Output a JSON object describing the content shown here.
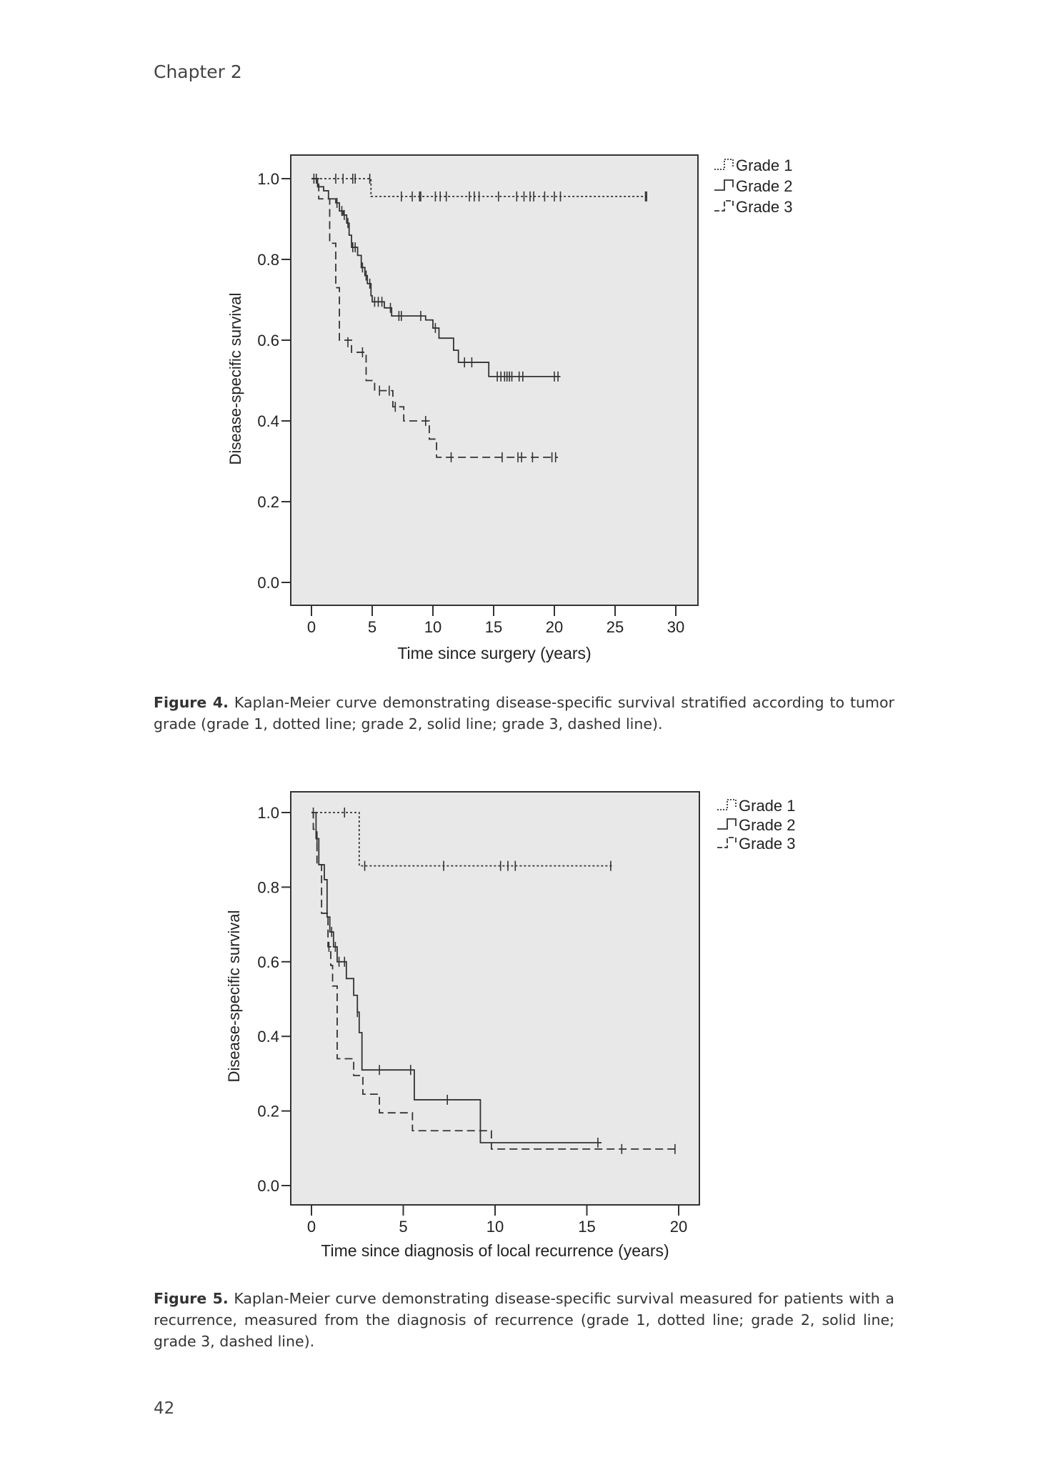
{
  "header": {
    "running_head": "Chapter 2"
  },
  "page_number": "42",
  "figure4": {
    "label": "Figure 4.",
    "caption": "Kaplan-Meier curve demonstrating disease-specific survival stratified according to tumor grade (grade 1, dotted line; grade 2, solid line; grade 3, dashed line)."
  },
  "figure5": {
    "label": "Figure 5.",
    "caption": "Kaplan-Meier curve demonstrating disease-specific survival measured for patients with a recurrence, measured from the diagnosis of recurrence (grade 1, dotted line; grade 2, solid line; grade 3, dashed line)."
  },
  "chart_data": [
    {
      "type": "line",
      "subtype": "kaplan-meier",
      "xlabel": "Time since surgery (years)",
      "ylabel": "Disease-specific survival",
      "xlim": [
        0,
        30
      ],
      "ylim": [
        0,
        1
      ],
      "xticks": [
        "0",
        "5",
        "10",
        "15",
        "20",
        "25",
        "30"
      ],
      "yticks": [
        "0.0",
        "0.2",
        "0.4",
        "0.6",
        "0.8",
        "1.0"
      ],
      "legend_position": "right-top-outside",
      "series": [
        {
          "name": "Grade 1",
          "style": "dotted",
          "end": 27.6,
          "steps": [
            [
              4.9,
              0.956
            ]
          ],
          "censored": [
            [
              0.2,
              1
            ],
            [
              0.4,
              1
            ],
            [
              2.0,
              1
            ],
            [
              2.6,
              1
            ],
            [
              3.4,
              1
            ],
            [
              3.6,
              1
            ],
            [
              4.8,
              1
            ],
            [
              7.4,
              0.956
            ],
            [
              8.3,
              0.956
            ],
            [
              8.9,
              0.956
            ],
            [
              9.0,
              0.956
            ],
            [
              10.2,
              0.956
            ],
            [
              10.6,
              0.956
            ],
            [
              11.1,
              0.956
            ],
            [
              13.0,
              0.956
            ],
            [
              13.4,
              0.956
            ],
            [
              13.8,
              0.956
            ],
            [
              15.4,
              0.956
            ],
            [
              16.9,
              0.956
            ],
            [
              17.5,
              0.956
            ],
            [
              18.0,
              0.956
            ],
            [
              18.3,
              0.956
            ],
            [
              19.2,
              0.956
            ],
            [
              20.0,
              0.956
            ],
            [
              20.5,
              0.956
            ],
            [
              27.5,
              0.956
            ],
            [
              27.6,
              0.956
            ]
          ]
        },
        {
          "name": "Grade 2",
          "style": "solid",
          "end": 20.5,
          "steps": [
            [
              0.5,
              0.98
            ],
            [
              1.0,
              0.97
            ],
            [
              1.4,
              0.95
            ],
            [
              2.0,
              0.94
            ],
            [
              2.3,
              0.92
            ],
            [
              2.6,
              0.91
            ],
            [
              2.9,
              0.89
            ],
            [
              3.1,
              0.86
            ],
            [
              3.3,
              0.83
            ],
            [
              3.8,
              0.81
            ],
            [
              4.1,
              0.78
            ],
            [
              4.4,
              0.76
            ],
            [
              4.6,
              0.74
            ],
            [
              4.9,
              0.71
            ],
            [
              5.0,
              0.695
            ],
            [
              6.0,
              0.68
            ],
            [
              6.6,
              0.66
            ],
            [
              9.4,
              0.65
            ],
            [
              10.0,
              0.63
            ],
            [
              10.5,
              0.605
            ],
            [
              11.7,
              0.575
            ],
            [
              12.1,
              0.545
            ],
            [
              14.6,
              0.51
            ]
          ],
          "censored": [
            [
              2.1,
              0.94
            ],
            [
              2.5,
              0.92
            ],
            [
              2.7,
              0.91
            ],
            [
              3.0,
              0.89
            ],
            [
              3.4,
              0.83
            ],
            [
              3.6,
              0.83
            ],
            [
              4.2,
              0.78
            ],
            [
              4.5,
              0.76
            ],
            [
              4.8,
              0.74
            ],
            [
              5.2,
              0.695
            ],
            [
              5.5,
              0.695
            ],
            [
              5.8,
              0.695
            ],
            [
              6.5,
              0.68
            ],
            [
              7.2,
              0.66
            ],
            [
              7.4,
              0.66
            ],
            [
              9.0,
              0.66
            ],
            [
              10.2,
              0.63
            ],
            [
              12.6,
              0.545
            ],
            [
              13.2,
              0.545
            ],
            [
              15.3,
              0.51
            ],
            [
              15.6,
              0.51
            ],
            [
              15.9,
              0.51
            ],
            [
              16.1,
              0.51
            ],
            [
              16.3,
              0.51
            ],
            [
              16.5,
              0.51
            ],
            [
              17.1,
              0.51
            ],
            [
              17.4,
              0.51
            ],
            [
              20.0,
              0.51
            ],
            [
              20.3,
              0.51
            ]
          ]
        },
        {
          "name": "Grade 3",
          "style": "dashed",
          "end": 20.3,
          "steps": [
            [
              0.6,
              0.95
            ],
            [
              1.5,
              0.84
            ],
            [
              2.0,
              0.73
            ],
            [
              2.3,
              0.6
            ],
            [
              3.3,
              0.57
            ],
            [
              4.5,
              0.5
            ],
            [
              5.2,
              0.475
            ],
            [
              6.7,
              0.435
            ],
            [
              7.6,
              0.4
            ],
            [
              9.7,
              0.355
            ],
            [
              10.3,
              0.31
            ]
          ],
          "censored": [
            [
              3.0,
              0.595
            ],
            [
              4.2,
              0.57
            ],
            [
              5.6,
              0.475
            ],
            [
              6.4,
              0.475
            ],
            [
              6.9,
              0.435
            ],
            [
              9.4,
              0.4
            ],
            [
              11.5,
              0.31
            ],
            [
              15.7,
              0.31
            ],
            [
              17.0,
              0.31
            ],
            [
              17.3,
              0.31
            ],
            [
              18.2,
              0.31
            ],
            [
              19.8,
              0.31
            ],
            [
              20.1,
              0.31
            ]
          ]
        }
      ]
    },
    {
      "type": "line",
      "subtype": "kaplan-meier",
      "xlabel": "Time since diagnosis of local recurrence (years)",
      "ylabel": "Disease-specific survival",
      "xlim": [
        0,
        20
      ],
      "ylim": [
        0,
        1
      ],
      "xticks": [
        "0",
        "5",
        "10",
        "15",
        "20"
      ],
      "yticks": [
        "0.0",
        "0.2",
        "0.4",
        "0.6",
        "0.8",
        "1.0"
      ],
      "legend_position": "right-top-outside",
      "series": [
        {
          "name": "Grade 1",
          "style": "dotted",
          "end": 16.4,
          "steps": [
            [
              2.6,
              0.857
            ]
          ],
          "censored": [
            [
              0.1,
              1
            ],
            [
              1.8,
              1
            ],
            [
              2.9,
              0.857
            ],
            [
              7.2,
              0.857
            ],
            [
              10.3,
              0.857
            ],
            [
              10.7,
              0.857
            ],
            [
              11.1,
              0.857
            ],
            [
              16.3,
              0.857
            ]
          ]
        },
        {
          "name": "Grade 2",
          "style": "solid",
          "end": 15.8,
          "steps": [
            [
              0.25,
              0.93
            ],
            [
              0.4,
              0.86
            ],
            [
              0.7,
              0.82
            ],
            [
              0.85,
              0.72
            ],
            [
              1.0,
              0.68
            ],
            [
              1.2,
              0.64
            ],
            [
              1.4,
              0.6
            ],
            [
              1.9,
              0.555
            ],
            [
              2.3,
              0.51
            ],
            [
              2.5,
              0.465
            ],
            [
              2.6,
              0.41
            ],
            [
              2.75,
              0.31
            ],
            [
              5.6,
              0.23
            ],
            [
              9.2,
              0.115
            ]
          ],
          "censored": [
            [
              0.3,
              0.93
            ],
            [
              1.1,
              0.68
            ],
            [
              1.3,
              0.64
            ],
            [
              1.5,
              0.6
            ],
            [
              1.8,
              0.6
            ],
            [
              2.5,
              0.465
            ],
            [
              3.7,
              0.31
            ],
            [
              5.4,
              0.31
            ],
            [
              7.4,
              0.23
            ],
            [
              15.6,
              0.115
            ]
          ]
        },
        {
          "name": "Grade 3",
          "style": "dashed",
          "end": 19.9,
          "steps": [
            [
              0.1,
              0.955
            ],
            [
              0.3,
              0.86
            ],
            [
              0.55,
              0.73
            ],
            [
              0.9,
              0.64
            ],
            [
              1.05,
              0.59
            ],
            [
              1.15,
              0.535
            ],
            [
              1.4,
              0.34
            ],
            [
              2.3,
              0.295
            ],
            [
              2.8,
              0.245
            ],
            [
              3.7,
              0.195
            ],
            [
              5.5,
              0.147
            ],
            [
              9.8,
              0.098
            ]
          ],
          "censored": [
            [
              0.95,
              0.64
            ],
            [
              16.9,
              0.098
            ],
            [
              19.8,
              0.098
            ]
          ]
        }
      ]
    }
  ],
  "colors": {
    "plot_background": "#e8e8e8",
    "line": "#333333",
    "frame": "#333333"
  }
}
